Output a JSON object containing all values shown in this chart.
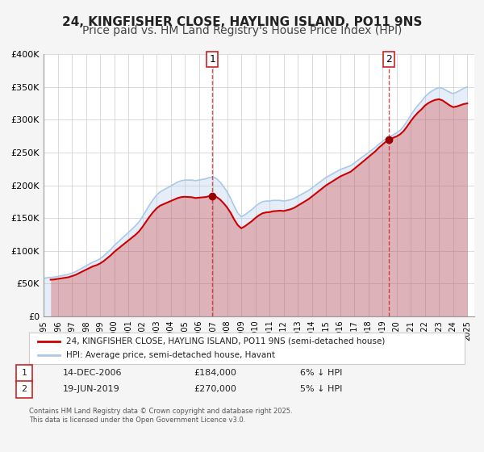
{
  "title": "24, KINGFISHER CLOSE, HAYLING ISLAND, PO11 9NS",
  "subtitle": "Price paid vs. HM Land Registry's House Price Index (HPI)",
  "xlabel": "",
  "ylabel": "",
  "ylim": [
    0,
    400000
  ],
  "yticks": [
    0,
    50000,
    100000,
    150000,
    200000,
    250000,
    300000,
    350000,
    400000
  ],
  "ytick_labels": [
    "£0",
    "£50K",
    "£100K",
    "£150K",
    "£200K",
    "£250K",
    "£300K",
    "£350K",
    "£400K"
  ],
  "xlim_start": 1995.0,
  "xlim_end": 2025.5,
  "xticks": [
    1995,
    1996,
    1997,
    1998,
    1999,
    2000,
    2001,
    2002,
    2003,
    2004,
    2005,
    2006,
    2007,
    2008,
    2009,
    2010,
    2011,
    2012,
    2013,
    2014,
    2015,
    2016,
    2017,
    2018,
    2019,
    2020,
    2021,
    2022,
    2023,
    2024,
    2025
  ],
  "background_color": "#f5f5f5",
  "plot_bg_color": "#ffffff",
  "grid_color": "#cccccc",
  "red_line_color": "#cc0000",
  "blue_line_color": "#aac8e8",
  "marker_color": "#990000",
  "transaction1_x": 2006.96,
  "transaction1_y": 184000,
  "transaction1_label": "1",
  "transaction2_x": 2019.47,
  "transaction2_y": 270000,
  "transaction2_label": "2",
  "legend_red_label": "24, KINGFISHER CLOSE, HAYLING ISLAND, PO11 9NS (semi-detached house)",
  "legend_blue_label": "HPI: Average price, semi-detached house, Havant",
  "table_row1": "1    14-DEC-2006    £184,000    6% ↓ HPI",
  "table_row2": "2    19-JUN-2019    £270,000    5% ↓ HPI",
  "footer": "Contains HM Land Registry data © Crown copyright and database right 2025.\nThis data is licensed under the Open Government Licence v3.0.",
  "hpi_years": [
    1995.0,
    1995.25,
    1995.5,
    1995.75,
    1996.0,
    1996.25,
    1996.5,
    1996.75,
    1997.0,
    1997.25,
    1997.5,
    1997.75,
    1998.0,
    1998.25,
    1998.5,
    1998.75,
    1999.0,
    1999.25,
    1999.5,
    1999.75,
    2000.0,
    2000.25,
    2000.5,
    2000.75,
    2001.0,
    2001.25,
    2001.5,
    2001.75,
    2002.0,
    2002.25,
    2002.5,
    2002.75,
    2003.0,
    2003.25,
    2003.5,
    2003.75,
    2004.0,
    2004.25,
    2004.5,
    2004.75,
    2005.0,
    2005.25,
    2005.5,
    2005.75,
    2006.0,
    2006.25,
    2006.5,
    2006.75,
    2007.0,
    2007.25,
    2007.5,
    2007.75,
    2008.0,
    2008.25,
    2008.5,
    2008.75,
    2009.0,
    2009.25,
    2009.5,
    2009.75,
    2010.0,
    2010.25,
    2010.5,
    2010.75,
    2011.0,
    2011.25,
    2011.5,
    2011.75,
    2012.0,
    2012.25,
    2012.5,
    2012.75,
    2013.0,
    2013.25,
    2013.5,
    2013.75,
    2014.0,
    2014.25,
    2014.5,
    2014.75,
    2015.0,
    2015.25,
    2015.5,
    2015.75,
    2016.0,
    2016.25,
    2016.5,
    2016.75,
    2017.0,
    2017.25,
    2017.5,
    2017.75,
    2018.0,
    2018.25,
    2018.5,
    2018.75,
    2019.0,
    2019.25,
    2019.5,
    2019.75,
    2020.0,
    2020.25,
    2020.5,
    2020.75,
    2021.0,
    2021.25,
    2021.5,
    2021.75,
    2022.0,
    2022.25,
    2022.5,
    2022.75,
    2023.0,
    2023.25,
    2023.5,
    2023.75,
    2024.0,
    2024.25,
    2024.5,
    2024.75,
    2025.0
  ],
  "hpi_values": [
    58000,
    59000,
    59500,
    60000,
    61000,
    62000,
    63000,
    64000,
    66000,
    68000,
    71000,
    74000,
    77000,
    80000,
    83000,
    85000,
    88000,
    92000,
    97000,
    102000,
    108000,
    113000,
    118000,
    123000,
    128000,
    133000,
    138000,
    144000,
    152000,
    161000,
    170000,
    178000,
    185000,
    190000,
    193000,
    196000,
    199000,
    202000,
    205000,
    207000,
    208000,
    208000,
    208000,
    207000,
    208000,
    209000,
    210000,
    212000,
    213000,
    210000,
    205000,
    198000,
    190000,
    180000,
    168000,
    158000,
    152000,
    155000,
    159000,
    163000,
    168000,
    172000,
    175000,
    176000,
    176000,
    177000,
    177000,
    177000,
    176000,
    177000,
    178000,
    180000,
    183000,
    186000,
    189000,
    192000,
    196000,
    200000,
    204000,
    208000,
    212000,
    215000,
    218000,
    221000,
    224000,
    226000,
    228000,
    230000,
    234000,
    238000,
    242000,
    246000,
    250000,
    254000,
    258000,
    263000,
    267000,
    271000,
    274000,
    277000,
    280000,
    284000,
    290000,
    298000,
    307000,
    315000,
    322000,
    328000,
    335000,
    340000,
    344000,
    347000,
    349000,
    348000,
    345000,
    342000,
    340000,
    342000,
    345000,
    348000,
    350000
  ],
  "price_years": [
    1995.5,
    2006.96,
    2019.47
  ],
  "price_values": [
    56000,
    184000,
    270000
  ],
  "title_fontsize": 11,
  "subtitle_fontsize": 10
}
